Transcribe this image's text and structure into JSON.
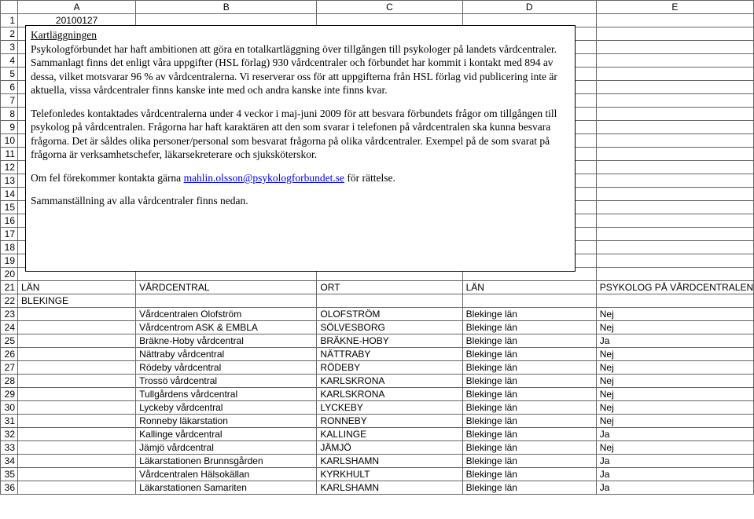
{
  "columns": {
    "A": "A",
    "B": "B",
    "C": "C",
    "D": "D",
    "E": "E"
  },
  "cell_A1": "20100127",
  "textbox": {
    "title": "Kartläggningen",
    "p1": "Psykologförbundet har haft ambitionen att göra en totalkartläggning över tillgången till psykologer på landets vårdcentraler. Sammanlagt finns det enligt våra uppgifter (HSL förlag) 930 vårdcentraler och förbundet har kommit i kontakt med 894 av dessa, vilket motsvarar 96 % av vårdcentralerna. Vi reserverar oss för att uppgifterna från HSL förlag vid publicering inte är aktuella, vissa vårdcentraler finns kanske inte med och andra kanske inte finns kvar.",
    "p2": "Telefonledes kontaktades vårdcentralerna under 4 veckor i maj-juni 2009 för att besvara förbundets frågor om tillgången till psykolog på vårdcentralen. Frågorna har haft karaktären att den som svarar i telefonen på vårdcentralen ska kunna besvara frågorna. Det är såldes olika personer/personal som besvarat frågorna på olika vårdcentraler. Exempel på de som svarat på frågorna är verksamhetschefer, läkarsekreterare och sjuksköterskor.",
    "p3_pre": "Om fel förekommer kontakta gärna ",
    "p3_link": "mahlin.olsson@psykologforbundet.se",
    "p3_post": " för rättelse.",
    "p4": "Sammanställning av alla vårdcentraler finns nedan."
  },
  "headerRow": {
    "A": "LÄN",
    "B": "VÅRDCENTRAL",
    "C": "ORT",
    "D": "LÄN",
    "E": "PSYKOLOG PÅ VÅRDCENTRALEN"
  },
  "blekinge": "BLEKINGE",
  "rows": [
    {
      "b": "Vårdcentralen Olofström",
      "c": "OLOFSTRÖM",
      "d": "Blekinge län",
      "e": "Nej"
    },
    {
      "b": "Vårdcentrom ASK & EMBLA",
      "c": "SÖLVESBORG",
      "d": "Blekinge län",
      "e": "Nej"
    },
    {
      "b": "Bräkne-Hoby vårdcentral",
      "c": "BRÄKNE-HOBY",
      "d": "Blekinge län",
      "e": "Ja"
    },
    {
      "b": "Nättraby vårdcentral",
      "c": "NÄTTRABY",
      "d": "Blekinge län",
      "e": "Nej"
    },
    {
      "b": "Rödeby vårdcentral",
      "c": "RÖDEBY",
      "d": "Blekinge län",
      "e": "Nej"
    },
    {
      "b": "Trossö vårdcentral",
      "c": "KARLSKRONA",
      "d": "Blekinge län",
      "e": "Nej"
    },
    {
      "b": "Tullgårdens vårdcentral",
      "c": "KARLSKRONA",
      "d": "Blekinge län",
      "e": "Nej"
    },
    {
      "b": "Lyckeby vårdcentral",
      "c": "LYCKEBY",
      "d": "Blekinge län",
      "e": "Nej"
    },
    {
      "b": "Ronneby läkarstation",
      "c": "RONNEBY",
      "d": "Blekinge län",
      "e": "Nej"
    },
    {
      "b": "Kallinge vårdcentral",
      "c": "KALLINGE",
      "d": "Blekinge län",
      "e": "Ja"
    },
    {
      "b": "Jämjö vårdcentral",
      "c": "JÄMJÖ",
      "d": "Blekinge län",
      "e": "Nej"
    },
    {
      "b": "Läkarstationen Brunnsgården",
      "c": "KARLSHAMN",
      "d": "Blekinge län",
      "e": "Ja"
    },
    {
      "b": "Vårdcentralen Hälsokällan",
      "c": "KYRKHULT",
      "d": "Blekinge län",
      "e": "Ja"
    },
    {
      "b": "Läkarstationen Samariten",
      "c": "KARLSHAMN",
      "d": "Blekinge län",
      "e": "Ja"
    }
  ]
}
